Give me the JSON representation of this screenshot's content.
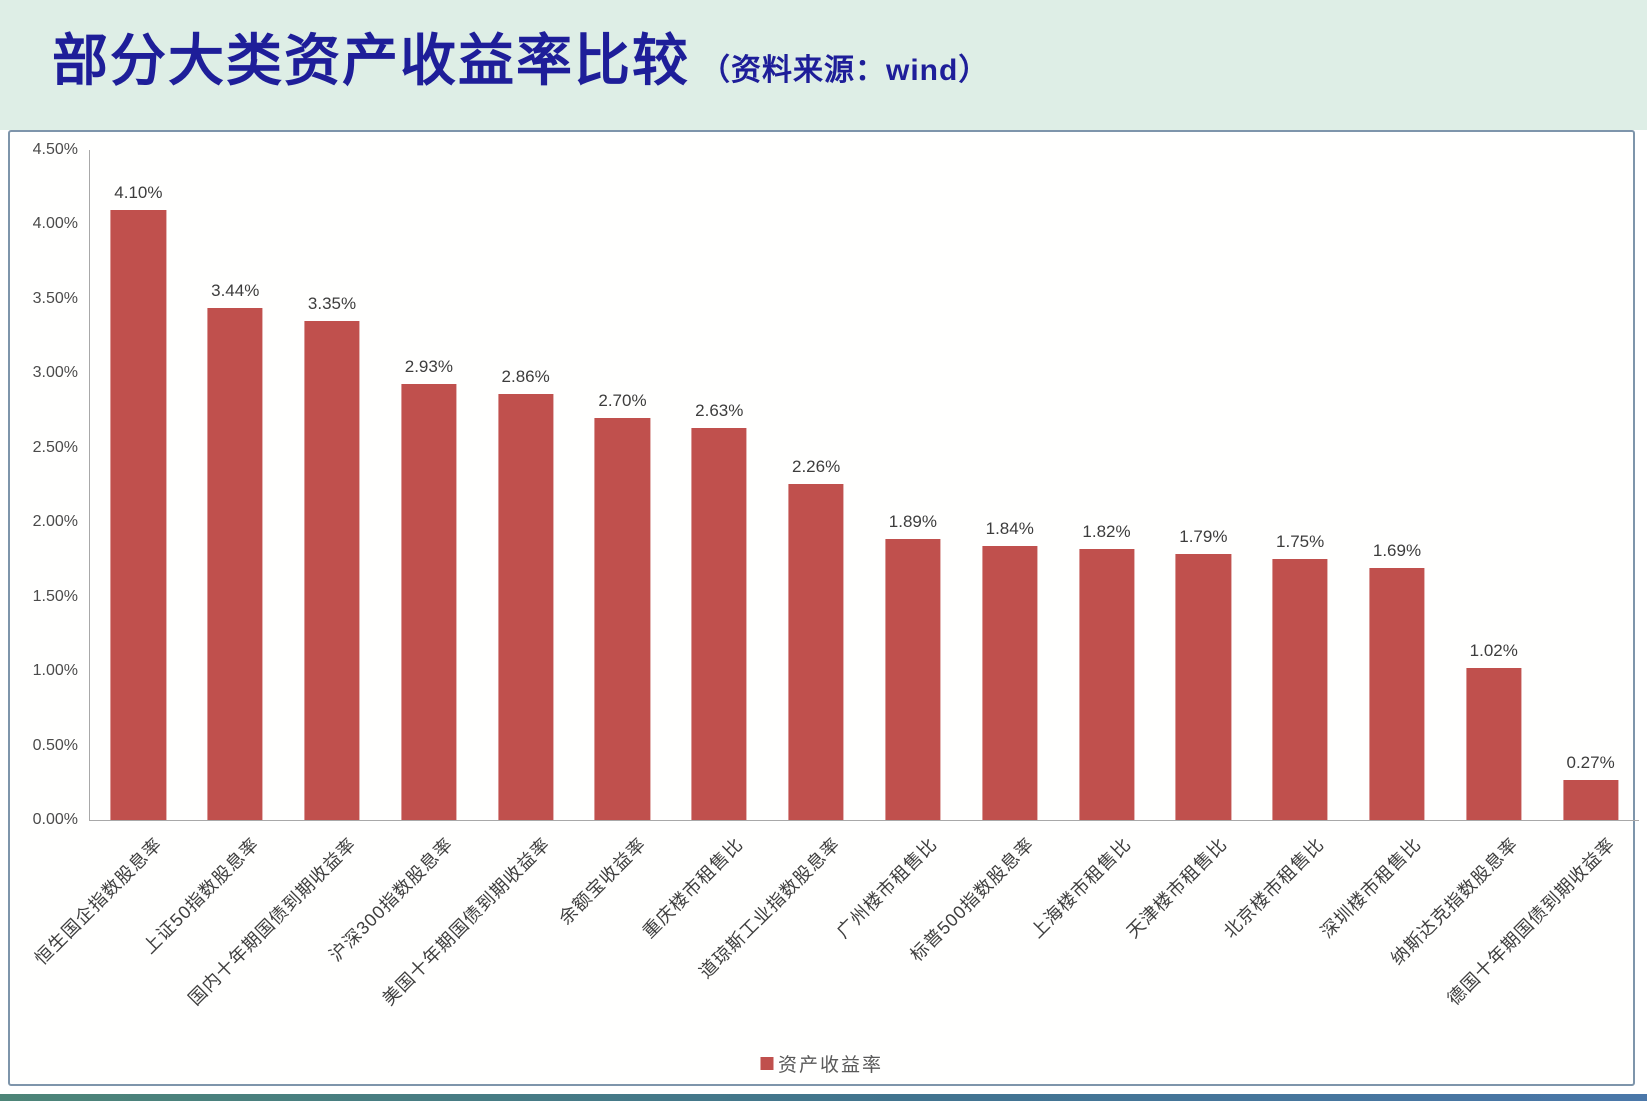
{
  "header": {
    "title": "部分大类资产收益率比较",
    "source_note": "（资料来源：wind）"
  },
  "legend": {
    "label": "资产收益率"
  },
  "colors": {
    "background_mint": "#deeee6",
    "title": "#1e1e99",
    "bar": "#c0504d",
    "chart_frame": "#7e95ab",
    "axis_line": "#a8a8a8",
    "accent_bar_left": "#4d8578",
    "accent_bar_right": "#4a77a9"
  },
  "chart_data": {
    "type": "bar",
    "title": "部分大类资产收益率比较",
    "source": "wind",
    "series_name": "资产收益率",
    "legend_position": "bottom",
    "grid": false,
    "ylim": [
      0,
      4.5
    ],
    "y_tick_labels": [
      "0.00%",
      "0.50%",
      "1.00%",
      "1.50%",
      "2.00%",
      "2.50%",
      "3.00%",
      "3.50%",
      "4.00%",
      "4.50%"
    ],
    "categories": [
      "恒生国企指数股息率",
      "上证50指数股息率",
      "国内十年期国债到期收益率",
      "沪深300指数股息率",
      "美国十年期国债到期收益率",
      "余额宝收益率",
      "重庆楼市租售比",
      "道琼斯工业指数股息率",
      "广州楼市租售比",
      "标普500指数股息率",
      "上海楼市租售比",
      "天津楼市租售比",
      "北京楼市租售比",
      "深圳楼市租售比",
      "纳斯达克指数股息率",
      "德国十年期国债到期收益率"
    ],
    "values": [
      4.1,
      3.44,
      3.35,
      2.93,
      2.86,
      2.7,
      2.63,
      2.26,
      1.89,
      1.84,
      1.82,
      1.79,
      1.75,
      1.69,
      1.02,
      0.27
    ],
    "value_labels": [
      "4.10%",
      "3.44%",
      "3.35%",
      "2.93%",
      "2.86%",
      "2.70%",
      "2.63%",
      "2.26%",
      "1.89%",
      "1.84%",
      "1.82%",
      "1.79%",
      "1.75%",
      "1.69%",
      "1.02%",
      "0.27%"
    ]
  }
}
